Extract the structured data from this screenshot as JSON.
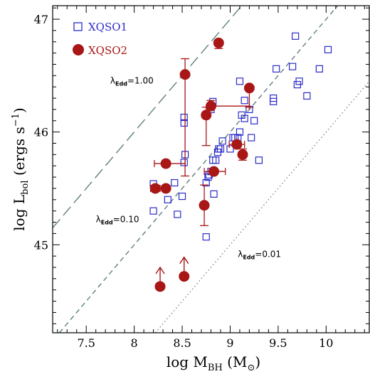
{
  "chart_data": {
    "type": "scatter",
    "xlabel": "log M",
    "xlabel_sub": "BH",
    "xlabel_unit": "(M",
    "xlabel_unit_sub": "⊙",
    "xlabel_unit_close": ")",
    "ylabel": "log L",
    "ylabel_sub": "bol",
    "ylabel_unit": "(ergs s",
    "ylabel_unit_sup": "−1",
    "ylabel_unit_close": ")",
    "xlim": [
      7.15,
      10.45
    ],
    "ylim": [
      44.22,
      47.12
    ],
    "x_ticks": [
      7.5,
      8,
      8.5,
      9,
      9.5,
      10
    ],
    "x_tick_labels": [
      "7.5",
      "8",
      "8.5",
      "9",
      "9.5",
      "10"
    ],
    "y_ticks": [
      45,
      46,
      47
    ],
    "y_tick_labels": [
      "45",
      "46",
      "47"
    ],
    "grid": false,
    "legend_position": "top-left",
    "eddington_lines": [
      {
        "ratio_label": "λ",
        "ratio_sub": "Edd",
        "ratio_value": "=1.00",
        "offset": 38.0,
        "style": "long-dash",
        "label_x": 7.75,
        "label_y": 46.43
      },
      {
        "ratio_label": "λ",
        "ratio_sub": "Edd",
        "ratio_value": "=0.10",
        "offset": 37.0,
        "style": "dash",
        "label_x": 7.6,
        "label_y": 45.2
      },
      {
        "ratio_label": "λ",
        "ratio_sub": "Edd",
        "ratio_value": "=0.01",
        "offset": 36.0,
        "style": "dot",
        "label_x": 9.08,
        "label_y": 44.89
      }
    ],
    "series": [
      {
        "name": "XQSO1",
        "marker": "open-square",
        "color": "#2b2bc8",
        "points": [
          [
            8.2,
            45.54
          ],
          [
            8.2,
            45.3
          ],
          [
            8.35,
            45.4
          ],
          [
            8.42,
            45.55
          ],
          [
            8.45,
            45.27
          ],
          [
            8.5,
            45.43
          ],
          [
            8.52,
            45.73
          ],
          [
            8.52,
            46.08
          ],
          [
            8.52,
            46.13
          ],
          [
            8.53,
            45.8
          ],
          [
            8.75,
            45.07
          ],
          [
            8.75,
            45.55
          ],
          [
            8.77,
            45.6
          ],
          [
            8.78,
            45.62
          ],
          [
            8.8,
            45.65
          ],
          [
            8.82,
            45.75
          ],
          [
            8.83,
            45.45
          ],
          [
            8.8,
            46.2
          ],
          [
            8.82,
            46.27
          ],
          [
            8.85,
            45.75
          ],
          [
            8.87,
            45.82
          ],
          [
            8.88,
            45.85
          ],
          [
            8.9,
            45.85
          ],
          [
            8.92,
            45.92
          ],
          [
            9.0,
            45.85
          ],
          [
            9.03,
            45.95
          ],
          [
            9.05,
            45.95
          ],
          [
            9.08,
            45.95
          ],
          [
            9.1,
            46.0
          ],
          [
            9.12,
            46.15
          ],
          [
            9.15,
            46.12
          ],
          [
            9.15,
            46.28
          ],
          [
            9.2,
            46.2
          ],
          [
            9.22,
            45.95
          ],
          [
            9.25,
            46.1
          ],
          [
            9.3,
            45.75
          ],
          [
            9.1,
            46.45
          ],
          [
            9.45,
            46.3
          ],
          [
            9.48,
            46.56
          ],
          [
            9.45,
            46.27
          ],
          [
            9.65,
            46.58
          ],
          [
            9.68,
            46.85
          ],
          [
            9.7,
            46.42
          ],
          [
            9.72,
            46.45
          ],
          [
            9.8,
            46.32
          ],
          [
            9.93,
            46.56
          ],
          [
            10.02,
            46.73
          ]
        ]
      },
      {
        "name": "XQSO2",
        "marker": "filled-circle",
        "color": "#a81616",
        "points": [
          {
            "x": 8.22,
            "y": 45.5,
            "xerr": [
              0.05,
              0.05
            ]
          },
          {
            "x": 8.33,
            "y": 45.5
          },
          {
            "x": 8.33,
            "y": 45.72,
            "xerr": [
              0.12,
              0.2
            ]
          },
          {
            "x": 8.53,
            "y": 46.51,
            "yerr": [
              0.9,
              0.14
            ]
          },
          {
            "x": 8.88,
            "y": 46.79,
            "yerr": [
              0.05,
              0
            ]
          },
          {
            "x": 8.75,
            "y": 46.15,
            "yerr": [
              0.27,
              0.07
            ]
          },
          {
            "x": 8.8,
            "y": 46.23,
            "xerr": [
              0.0,
              0.4
            ],
            "yerr": [
              0.0,
              0.05
            ]
          },
          {
            "x": 9.2,
            "y": 46.39,
            "yerr": [
              0.17,
              0.0
            ]
          },
          {
            "x": 8.73,
            "y": 45.35,
            "yerr": [
              0.18,
              0.18
            ]
          },
          {
            "x": 8.83,
            "y": 45.65,
            "xerr": [
              0.1,
              0.12
            ]
          },
          {
            "x": 9.07,
            "y": 45.89,
            "xerr": [
              0.08,
              0.08
            ]
          },
          {
            "x": 9.13,
            "y": 45.8,
            "yerr": [
              0.05,
              0.05
            ]
          },
          {
            "x": 8.27,
            "y": 44.63,
            "lower_limit": true
          },
          {
            "x": 8.52,
            "y": 44.72,
            "lower_limit": true
          }
        ]
      }
    ]
  }
}
